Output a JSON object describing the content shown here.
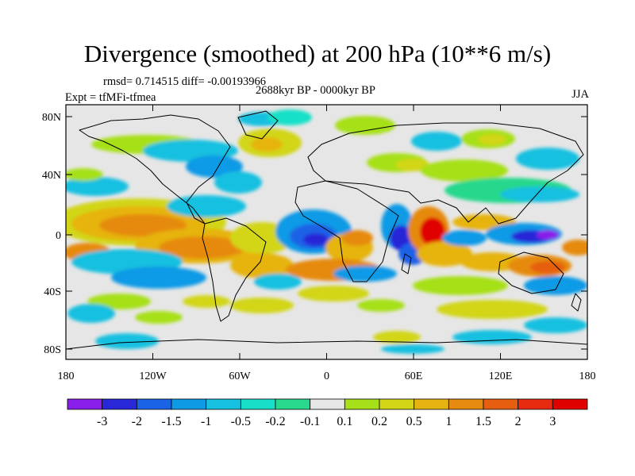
{
  "title": "Divergence (smoothed) at 200 hPa (10**6 m/s)",
  "stats": "rmsd= 0.714515 diff= -0.00193966",
  "period": "2688kyr BP - 0000kyr BP",
  "experiment": "Expt = tfMFi-tfmea",
  "season": "JJA",
  "lat_ticks": [
    "80N",
    "40N",
    "0",
    "40S",
    "80S"
  ],
  "lon_ticks": [
    "180",
    "120W",
    "60W",
    "0",
    "60E",
    "120E",
    "180"
  ],
  "colorbar": {
    "labels": [
      "-3",
      "-2",
      "-1.5",
      "-1",
      "-0.5",
      "-0.2",
      "-0.1",
      "0.1",
      "0.2",
      "0.5",
      "1",
      "1.5",
      "2",
      "3"
    ],
    "colors": [
      "#8a1eea",
      "#2828d8",
      "#1a62e6",
      "#0f9ae6",
      "#16c0e0",
      "#18e0c8",
      "#28d88c",
      "#e6e6e6",
      "#a6e018",
      "#d2d616",
      "#e6b410",
      "#e68a10",
      "#e65e10",
      "#e82a10",
      "#e00000"
    ]
  },
  "map_colors": {
    "land_outline": "#000000",
    "background": "#e6e6e6"
  }
}
